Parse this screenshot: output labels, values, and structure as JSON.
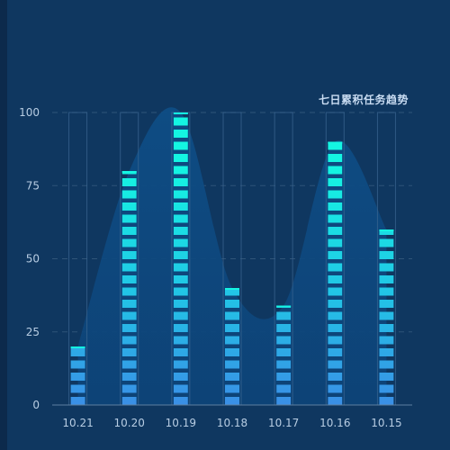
{
  "chart_data": {
    "type": "bar",
    "title": "七日累积任务趋势",
    "categories": [
      "10.21",
      "10.20",
      "10.19",
      "10.18",
      "10.17",
      "10.16",
      "10.15"
    ],
    "series": [
      {
        "values": [
          20,
          80,
          100,
          40,
          34,
          90,
          60
        ]
      }
    ],
    "xlabel": "",
    "ylabel": "",
    "ylim": [
      0,
      100
    ],
    "yticks": [
      0,
      25,
      50,
      75,
      100
    ],
    "grid": true,
    "style": {
      "bar_top_color": "#14f5e2",
      "bar_bottom_color": "#3a8fe6",
      "area_color": "#0d4a80",
      "grid_color": "#2f5478",
      "axis_color": "#5e7f9f",
      "bar_style": "segmented pictorial bars with outline of full-height column",
      "background": "#0f3760"
    }
  }
}
